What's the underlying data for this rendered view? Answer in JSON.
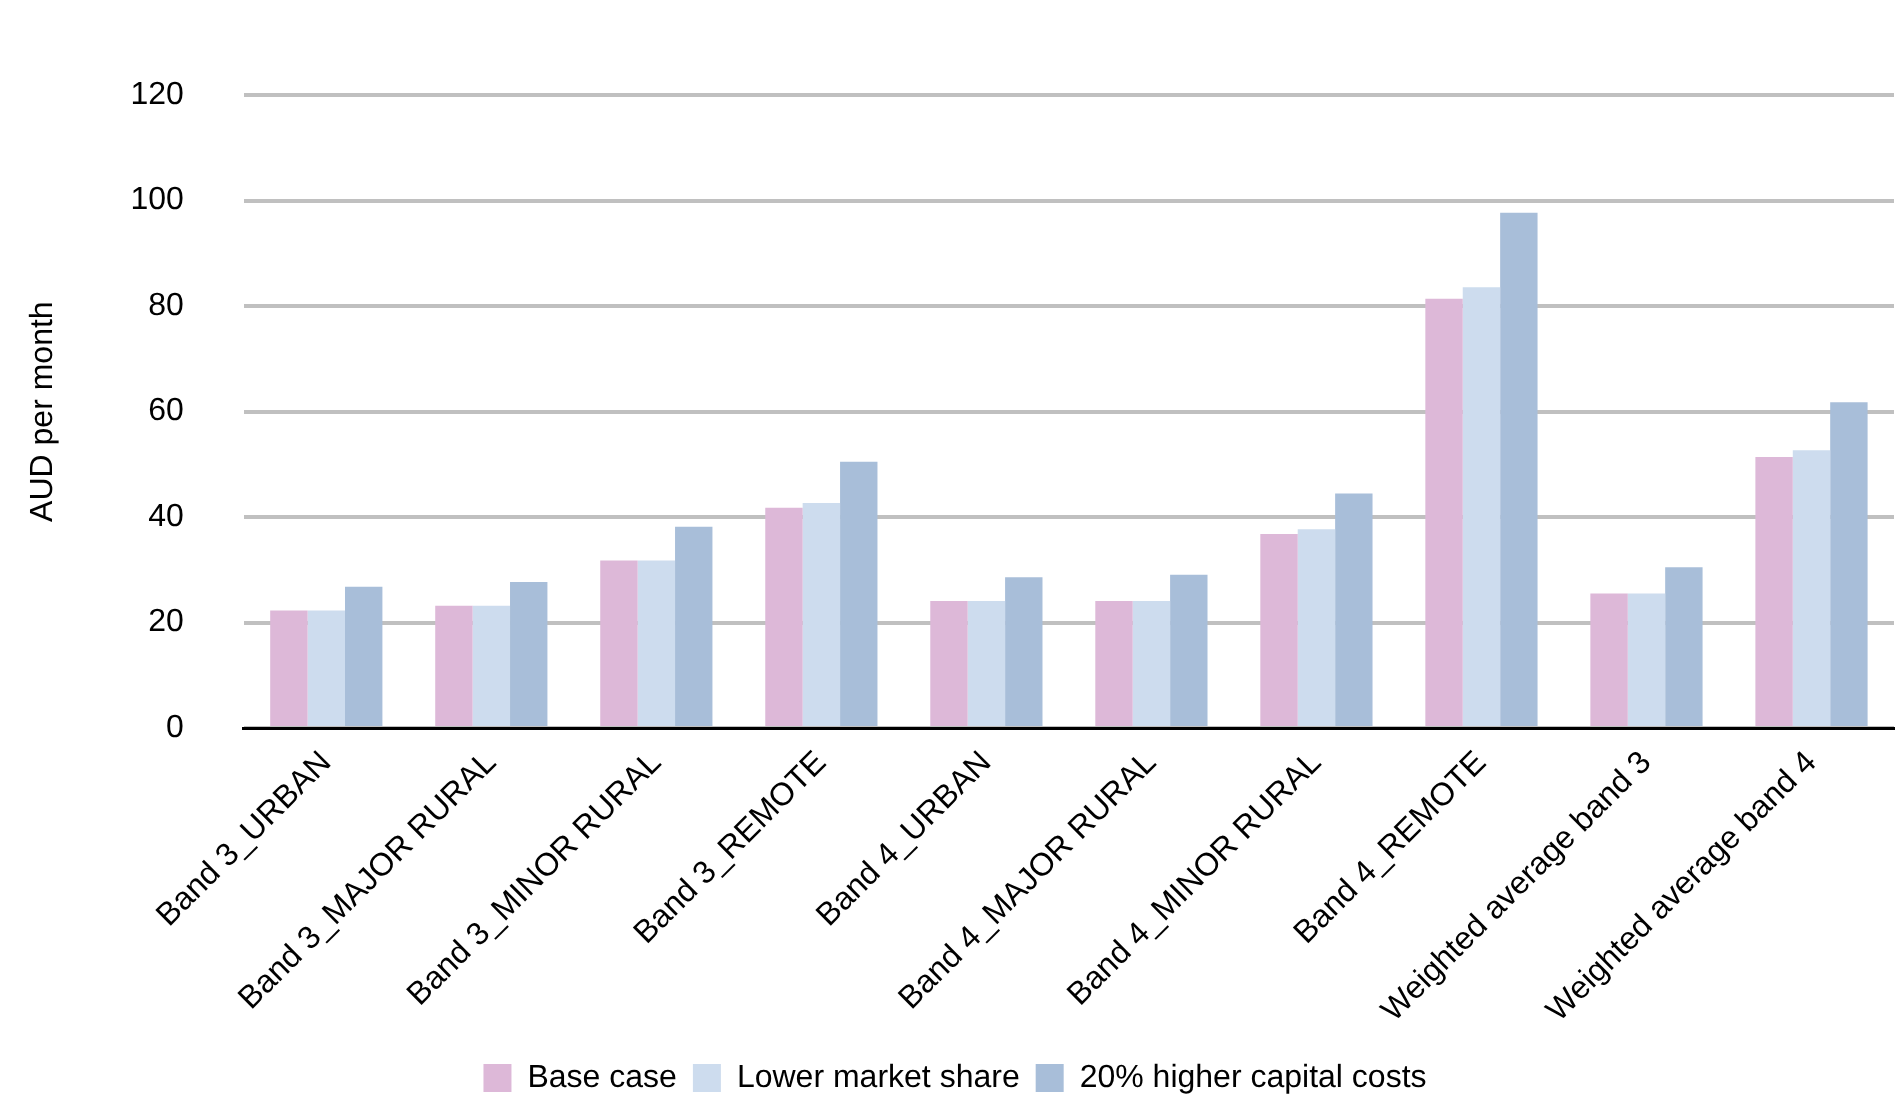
{
  "chart_data": {
    "type": "bar",
    "ylabel": "AUD per month",
    "categories": [
      "Band 3_URBAN",
      "Band 3_MAJOR RURAL",
      "Band 3_MINOR RURAL",
      "Band 3_REMOTE",
      "Band 4_URBAN",
      "Band 4_MAJOR RURAL",
      "Band 4_MINOR RURAL",
      "Band 4_REMOTE",
      "Weighted average band 3",
      "Weighted average band 4"
    ],
    "series": [
      {
        "name": "Base case",
        "color": "#ddb8d8",
        "values": [
          22.3,
          23.2,
          31.8,
          41.8,
          24.1,
          24.1,
          36.8,
          81.4,
          25.5,
          51.4
        ]
      },
      {
        "name": "Lower market share",
        "color": "#cddcee",
        "values": [
          22.3,
          23.2,
          31.8,
          42.7,
          24.1,
          24.1,
          37.7,
          83.6,
          25.5,
          52.7
        ]
      },
      {
        "name": "20% higher capital costs",
        "color": "#a8bed9",
        "values": [
          26.8,
          27.7,
          38.2,
          50.5,
          28.6,
          29.1,
          44.5,
          97.7,
          30.5,
          61.8
        ]
      }
    ],
    "ylim": [
      0,
      120
    ],
    "yticks": [
      0,
      20,
      40,
      60,
      80,
      100,
      120
    ],
    "grid": "y",
    "legend": "bottom"
  }
}
